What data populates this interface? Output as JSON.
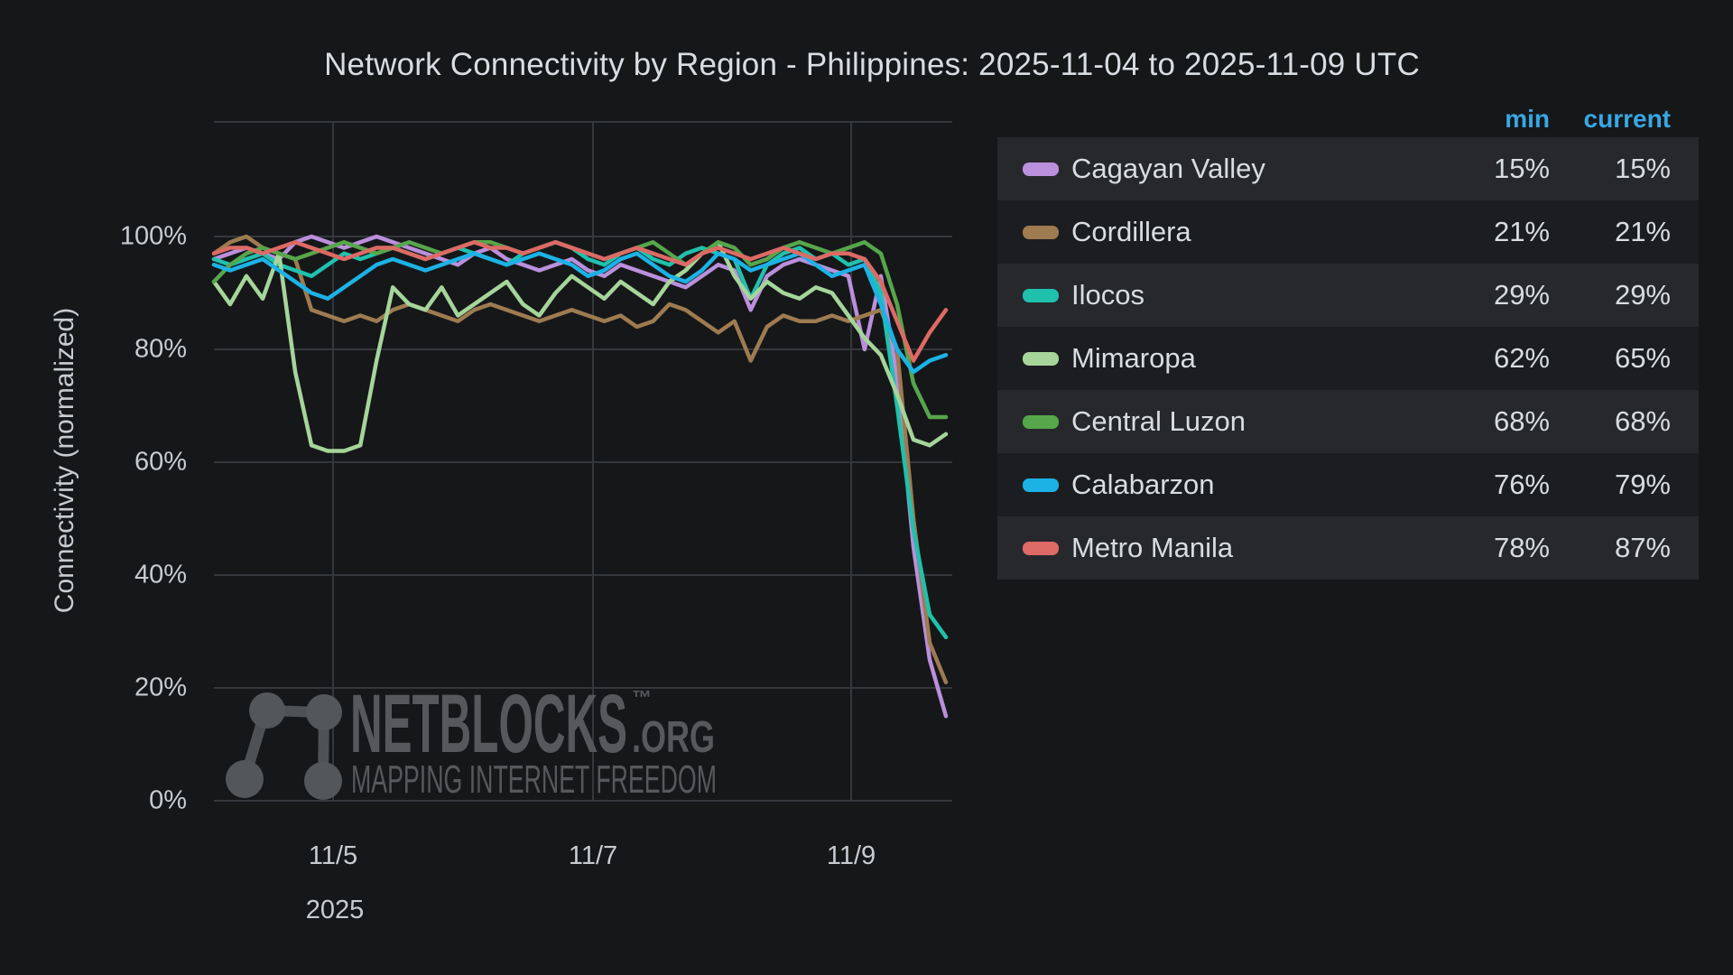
{
  "title": "Network Connectivity by Region - Philippines: 2025-11-04 to 2025-11-09 UTC",
  "watermark": {
    "brand": "NETBLOCKS",
    "tm": "™",
    "tld": ".ORG",
    "tagline": "MAPPING INTERNET FREEDOM",
    "color": "#56585b"
  },
  "legend": {
    "header_color": "#38a7e4",
    "headers": {
      "min": "min",
      "current": "current"
    },
    "rows": [
      {
        "label": "Cagayan Valley",
        "min": "15%",
        "current": "15%",
        "color": "#ba8fdc"
      },
      {
        "label": "Cordillera",
        "min": "21%",
        "current": "21%",
        "color": "#9e7b50"
      },
      {
        "label": "Ilocos",
        "min": "29%",
        "current": "29%",
        "color": "#1fc1ad"
      },
      {
        "label": "Mimaropa",
        "min": "62%",
        "current": "65%",
        "color": "#a5d59a"
      },
      {
        "label": "Central Luzon",
        "min": "68%",
        "current": "68%",
        "color": "#56a64b"
      },
      {
        "label": "Calabarzon",
        "min": "76%",
        "current": "79%",
        "color": "#1cb2e5"
      },
      {
        "label": "Metro Manila",
        "min": "78%",
        "current": "87%",
        "color": "#dd6a65"
      }
    ]
  },
  "chart_data": {
    "type": "line",
    "title": "Network Connectivity by Region - Philippines: 2025-11-04 to 2025-11-09 UTC",
    "xlabel": "",
    "ylabel": "Connectivity (normalized)",
    "ylim": [
      0,
      100
    ],
    "grid": true,
    "legend_position": "right-table",
    "x_range": "2025-11-04 02:00 UTC to 2025-11-09 17:00 UTC",
    "y_ticks": [
      {
        "v": 0,
        "label": "0%"
      },
      {
        "v": 20,
        "label": "20%"
      },
      {
        "v": 40,
        "label": "40%"
      },
      {
        "v": 60,
        "label": "60%"
      },
      {
        "v": 80,
        "label": "80%"
      },
      {
        "v": 100,
        "label": "100%"
      }
    ],
    "x_ticks": [
      {
        "label": "11/5",
        "x": 369
      },
      {
        "label": "11/7",
        "x": 657
      },
      {
        "label": "11/9",
        "x": 943
      }
    ],
    "x_year_label": "2025",
    "series": [
      {
        "name": "Cagayan Valley",
        "color": "#ba8fdc",
        "min": 15,
        "current": 15,
        "values": [
          96,
          97,
          98,
          97,
          96,
          99,
          100,
          99,
          98,
          99,
          100,
          99,
          98,
          97,
          96,
          95,
          97,
          98,
          96,
          95,
          94,
          95,
          96,
          94,
          93,
          95,
          94,
          93,
          92,
          91,
          93,
          95,
          94,
          87,
          93,
          95,
          96,
          95,
          94,
          93,
          80,
          93,
          75,
          45,
          25,
          15
        ]
      },
      {
        "name": "Cordillera",
        "color": "#9e7b50",
        "min": 21,
        "current": 21,
        "values": [
          97,
          99,
          100,
          98,
          97,
          96,
          87,
          86,
          85,
          86,
          85,
          87,
          88,
          87,
          86,
          85,
          87,
          88,
          87,
          86,
          85,
          86,
          87,
          86,
          85,
          86,
          84,
          85,
          88,
          87,
          85,
          83,
          85,
          78,
          84,
          86,
          85,
          85,
          86,
          85,
          86,
          87,
          80,
          50,
          28,
          21
        ]
      },
      {
        "name": "Ilocos",
        "color": "#1fc1ad",
        "min": 29,
        "current": 29,
        "values": [
          96,
          95,
          96,
          97,
          95,
          94,
          93,
          95,
          97,
          96,
          97,
          98,
          97,
          96,
          97,
          98,
          97,
          96,
          95,
          97,
          98,
          99,
          98,
          96,
          95,
          97,
          98,
          96,
          95,
          97,
          98,
          97,
          96,
          89,
          95,
          97,
          98,
          96,
          97,
          95,
          96,
          90,
          70,
          48,
          33,
          29
        ]
      },
      {
        "name": "Mimaropa",
        "color": "#a5d59a",
        "min": 62,
        "current": 65,
        "values": [
          92,
          88,
          93,
          89,
          97,
          76,
          63,
          62,
          62,
          63,
          78,
          91,
          88,
          87,
          91,
          86,
          88,
          90,
          92,
          88,
          86,
          90,
          93,
          91,
          89,
          92,
          90,
          88,
          92,
          94,
          97,
          99,
          93,
          89,
          92,
          90,
          89,
          91,
          90,
          86,
          82,
          79,
          72,
          64,
          63,
          65
        ]
      },
      {
        "name": "Central Luzon",
        "color": "#56a64b",
        "min": 68,
        "current": 68,
        "values": [
          92,
          95,
          97,
          98,
          97,
          96,
          97,
          98,
          99,
          98,
          97,
          98,
          99,
          98,
          97,
          98,
          99,
          99,
          98,
          97,
          98,
          99,
          98,
          97,
          96,
          97,
          98,
          99,
          97,
          95,
          97,
          99,
          98,
          95,
          96,
          98,
          99,
          98,
          97,
          98,
          99,
          97,
          88,
          74,
          68,
          68
        ]
      },
      {
        "name": "Calabarzon",
        "color": "#1cb2e5",
        "min": 76,
        "current": 79,
        "values": [
          95,
          94,
          95,
          96,
          94,
          92,
          90,
          89,
          91,
          93,
          95,
          96,
          95,
          94,
          95,
          96,
          97,
          96,
          95,
          96,
          97,
          96,
          95,
          93,
          94,
          96,
          97,
          95,
          93,
          92,
          94,
          97,
          96,
          94,
          95,
          96,
          97,
          95,
          93,
          94,
          95,
          88,
          80,
          76,
          78,
          79
        ]
      },
      {
        "name": "Metro Manila",
        "color": "#dd6a65",
        "min": 78,
        "current": 87,
        "values": [
          97,
          98,
          98,
          97,
          98,
          99,
          98,
          97,
          96,
          97,
          98,
          98,
          97,
          96,
          97,
          98,
          99,
          98,
          98,
          97,
          98,
          99,
          98,
          97,
          96,
          97,
          98,
          97,
          96,
          95,
          97,
          98,
          97,
          96,
          97,
          98,
          97,
          96,
          97,
          97,
          96,
          92,
          85,
          78,
          83,
          87
        ]
      }
    ]
  }
}
